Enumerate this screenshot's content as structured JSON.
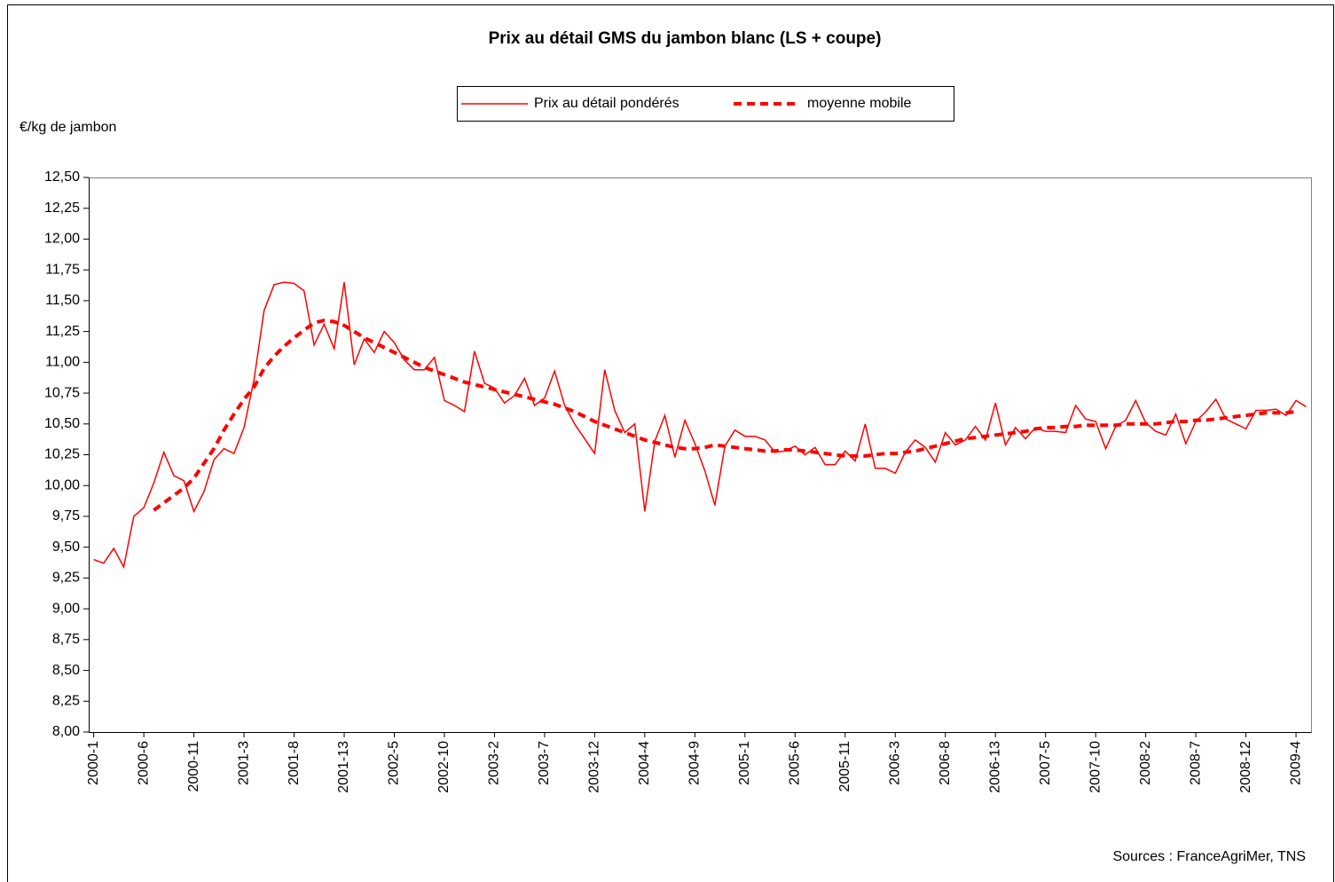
{
  "chart_data": {
    "type": "line",
    "title": "Prix au détail GMS du jambon blanc (LS + coupe)",
    "y_label": "€/kg de jambon",
    "source": "Sources : FranceAgriMer, TNS",
    "categories": [
      "2000-1",
      null,
      null,
      null,
      null,
      "2000-6",
      null,
      null,
      null,
      null,
      "2000-11",
      null,
      null,
      null,
      null,
      "2001-3",
      null,
      null,
      null,
      null,
      "2001-8",
      null,
      null,
      null,
      null,
      "2001-13",
      null,
      null,
      null,
      null,
      "2002-5",
      null,
      null,
      null,
      null,
      "2002-10",
      null,
      null,
      null,
      null,
      "2003-2",
      null,
      null,
      null,
      null,
      "2003-7",
      null,
      null,
      null,
      null,
      "2003-12",
      null,
      null,
      null,
      null,
      "2004-4",
      null,
      null,
      null,
      null,
      "2004-9",
      null,
      null,
      null,
      null,
      "2005-1",
      null,
      null,
      null,
      null,
      "2005-6",
      null,
      null,
      null,
      null,
      "2005-11",
      null,
      null,
      null,
      null,
      "2006-3",
      null,
      null,
      null,
      null,
      "2006-8",
      null,
      null,
      null,
      null,
      "2006-13",
      null,
      null,
      null,
      null,
      "2007-5",
      null,
      null,
      null,
      null,
      "2007-10",
      null,
      null,
      null,
      null,
      "2008-2",
      null,
      null,
      null,
      null,
      "2008-7",
      null,
      null,
      null,
      null,
      "2008-12",
      null,
      null,
      null,
      null,
      "2009-4",
      null
    ],
    "series": [
      {
        "name": "Prix au détail pondérés",
        "color": "#ff0000",
        "style": "solid",
        "values": [
          9.4,
          9.37,
          9.49,
          9.34,
          9.75,
          9.82,
          10.02,
          10.27,
          10.08,
          10.04,
          9.79,
          9.95,
          10.21,
          10.3,
          10.26,
          10.47,
          10.86,
          11.42,
          11.63,
          11.65,
          11.64,
          11.58,
          11.14,
          11.31,
          11.11,
          11.65,
          10.98,
          11.19,
          11.08,
          11.25,
          11.16,
          11.02,
          10.94,
          10.94,
          11.04,
          10.69,
          10.65,
          10.6,
          11.09,
          10.83,
          10.79,
          10.67,
          10.73,
          10.87,
          10.65,
          10.71,
          10.93,
          10.65,
          10.5,
          10.38,
          10.26,
          10.94,
          10.61,
          10.43,
          10.5,
          9.79,
          10.36,
          10.57,
          10.23,
          10.53,
          10.34,
          10.12,
          9.84,
          10.32,
          10.45,
          10.4,
          10.4,
          10.37,
          10.27,
          10.28,
          10.32,
          10.25,
          10.31,
          10.17,
          10.17,
          10.28,
          10.2,
          10.5,
          10.14,
          10.14,
          10.1,
          10.27,
          10.37,
          10.31,
          10.19,
          10.43,
          10.33,
          10.37,
          10.48,
          10.37,
          10.67,
          10.33,
          10.47,
          10.38,
          10.47,
          10.44,
          10.44,
          10.43,
          10.65,
          10.54,
          10.52,
          10.3,
          10.48,
          10.53,
          10.69,
          10.51,
          10.44,
          10.41,
          10.58,
          10.34,
          10.52,
          10.6,
          10.7,
          10.54,
          10.5,
          10.46,
          10.61,
          10.61,
          10.62,
          10.57,
          10.69,
          10.64
        ]
      },
      {
        "name": "moyenne mobile",
        "color": "#ff0000",
        "style": "dashed",
        "values": [
          null,
          null,
          null,
          null,
          null,
          null,
          9.8,
          9.86,
          9.92,
          9.98,
          10.06,
          10.18,
          10.3,
          10.45,
          10.58,
          10.7,
          10.8,
          10.95,
          11.05,
          11.13,
          11.2,
          11.26,
          11.32,
          11.34,
          11.33,
          11.3,
          11.25,
          11.2,
          11.16,
          11.12,
          11.08,
          11.04,
          11.0,
          10.96,
          10.93,
          10.9,
          10.87,
          10.84,
          10.82,
          10.8,
          10.78,
          10.76,
          10.74,
          10.72,
          10.7,
          10.68,
          10.66,
          10.63,
          10.6,
          10.56,
          10.52,
          10.49,
          10.46,
          10.43,
          10.4,
          10.37,
          10.35,
          10.33,
          10.31,
          10.3,
          10.3,
          10.31,
          10.33,
          10.32,
          10.31,
          10.3,
          10.29,
          10.28,
          10.28,
          10.29,
          10.29,
          10.28,
          10.27,
          10.26,
          10.25,
          10.24,
          10.24,
          10.24,
          10.25,
          10.26,
          10.26,
          10.27,
          10.28,
          10.3,
          10.32,
          10.34,
          10.36,
          10.38,
          10.39,
          10.4,
          10.41,
          10.42,
          10.43,
          10.44,
          10.46,
          10.47,
          10.47,
          10.48,
          10.48,
          10.49,
          10.49,
          10.49,
          10.49,
          10.5,
          10.5,
          10.5,
          10.5,
          10.51,
          10.52,
          10.52,
          10.53,
          10.53,
          10.54,
          10.55,
          10.56,
          10.57,
          10.58,
          10.59,
          10.59,
          10.59,
          10.6,
          null
        ]
      }
    ],
    "ylim": [
      8,
      12.5
    ],
    "yticks": [
      {
        "value": 8,
        "label": "8,00"
      },
      {
        "value": 8.25,
        "label": "8,25"
      },
      {
        "value": 8.5,
        "label": "8,50"
      },
      {
        "value": 8.75,
        "label": "8,75"
      },
      {
        "value": 9,
        "label": "9,00"
      },
      {
        "value": 9.25,
        "label": "9,25"
      },
      {
        "value": 9.5,
        "label": "9,50"
      },
      {
        "value": 9.75,
        "label": "9,75"
      },
      {
        "value": 10,
        "label": "10,00"
      },
      {
        "value": 10.25,
        "label": "10,25"
      },
      {
        "value": 10.5,
        "label": "10,50"
      },
      {
        "value": 10.75,
        "label": "10,75"
      },
      {
        "value": 11,
        "label": "11,00"
      },
      {
        "value": 11.25,
        "label": "11,25"
      },
      {
        "value": 11.5,
        "label": "11,50"
      },
      {
        "value": 11.75,
        "label": "11,75"
      },
      {
        "value": 12,
        "label": "12,00"
      },
      {
        "value": 12.25,
        "label": "12,25"
      },
      {
        "value": 12.5,
        "label": "12,50"
      }
    ],
    "grid": false
  }
}
